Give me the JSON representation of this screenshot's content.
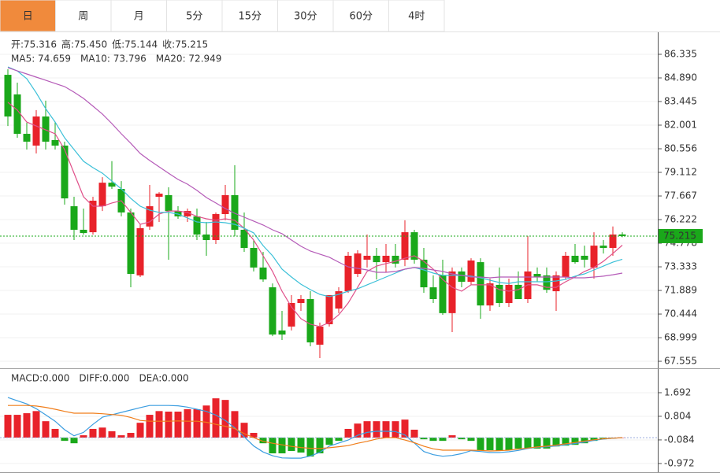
{
  "tabs": [
    "日",
    "周",
    "月",
    "5分",
    "15分",
    "30分",
    "60分",
    "4时"
  ],
  "active_tab": 0,
  "chart_data": {
    "type": "candlestick",
    "readouts": [
      {
        "label": "开:",
        "value": "75.316"
      },
      {
        "label": "高:",
        "value": "75.450"
      },
      {
        "label": "低:",
        "value": "75.144"
      },
      {
        "label": "收:",
        "value": "75.215"
      }
    ],
    "readout_color": "#1a9a1a",
    "up_color": "#e8222a",
    "down_color": "#1aa81a",
    "ylim": [
      67.22,
      87.635
    ],
    "yticks": [
      86.335,
      {
        "value": 84.89,
        "label": "84.890"
      },
      83.445,
      82.001,
      80.556,
      79.112,
      77.667,
      76.222,
      74.778,
      73.333,
      71.889,
      70.444,
      68.999,
      67.555
    ],
    "grid": true,
    "last_price": 75.215,
    "last_price_color": "#1aa81a",
    "open": [
      85.08,
      83.88,
      81.47,
      80.75,
      82.53,
      81.09,
      80.75,
      77.04,
      75.6,
      75.45,
      77.04,
      78.48,
      78.1,
      76.66,
      72.81,
      75.8,
      77.62,
      77.72,
      76.75,
      76.42,
      76.42,
      75.31,
      74.97,
      76.56,
      77.72,
      75.6,
      74.49,
      73.29,
      72.08,
      69.44,
      69.68,
      71.12,
      71.36,
      68.57,
      69.82,
      70.78,
      71.84,
      72.9,
      73.77,
      74.01,
      73.62,
      74.01,
      73.77,
      75.45,
      73.77,
      72.08,
      72.81,
      70.5,
      73.05,
      72.42,
      73.62,
      70.97,
      72.23,
      71.12,
      72.23,
      71.36,
      72.9,
      72.81,
      71.84,
      72.71,
      74.01,
      74.01,
      73.29,
      74.63,
      74.49,
      75.316
    ],
    "high": [
      85.42,
      84.6,
      82.15,
      82.92,
      83.5,
      82.2,
      80.99,
      77.62,
      76.9,
      77.62,
      78.82,
      79.8,
      78.58,
      76.9,
      75.94,
      78.34,
      77.9,
      78.2,
      77.04,
      76.9,
      76.9,
      76.08,
      76.66,
      78.34,
      79.55,
      76.66,
      74.97,
      74.25,
      72.32,
      70.64,
      71.6,
      71.6,
      71.84,
      69.92,
      71.6,
      72.08,
      74.25,
      74.35,
      75.31,
      74.49,
      74.73,
      74.73,
      76.18,
      75.6,
      74.49,
      72.81,
      73.77,
      73.29,
      73.29,
      73.86,
      73.86,
      72.61,
      73.29,
      72.61,
      73.05,
      75.21,
      73.29,
      73.29,
      73.05,
      74.25,
      74.73,
      74.63,
      75.45,
      74.97,
      75.8,
      75.45
    ],
    "low": [
      81.95,
      81.23,
      80.51,
      80.27,
      80.51,
      80.51,
      77.14,
      74.97,
      75.3,
      75.3,
      76.75,
      78.1,
      76.42,
      72.08,
      72.71,
      75.6,
      76.08,
      73.77,
      76.27,
      76.08,
      74.97,
      74.01,
      74.73,
      76.18,
      75.21,
      74.25,
      73.05,
      72.42,
      69.09,
      68.86,
      69.44,
      70.64,
      68.47,
      67.75,
      69.68,
      70.5,
      71.74,
      72.71,
      73.29,
      72.56,
      72.99,
      73.29,
      73.38,
      73.53,
      71.74,
      71.12,
      70.4,
      69.34,
      72.08,
      72.23,
      70.16,
      70.64,
      70.88,
      70.88,
      71.36,
      71.12,
      72.42,
      71.74,
      70.64,
      72.56,
      73.53,
      73.29,
      72.61,
      74.15,
      74.01,
      75.144
    ],
    "close": [
      82.53,
      81.47,
      80.99,
      82.53,
      80.99,
      80.75,
      77.52,
      75.6,
      75.4,
      77.38,
      78.48,
      78.24,
      76.66,
      72.9,
      75.7,
      77.04,
      77.81,
      76.75,
      76.42,
      76.75,
      75.31,
      74.97,
      76.56,
      77.72,
      75.6,
      74.49,
      73.29,
      72.56,
      69.19,
      69.19,
      71.12,
      71.36,
      68.71,
      69.68,
      71.6,
      71.84,
      74.01,
      74.15,
      74.01,
      73.62,
      74.01,
      73.53,
      75.45,
      73.77,
      72.08,
      71.36,
      70.5,
      73.05,
      72.42,
      73.72,
      70.97,
      72.32,
      71.12,
      72.23,
      71.36,
      73.05,
      72.71,
      71.93,
      72.81,
      74.01,
      73.62,
      73.77,
      74.63,
      74.49,
      75.31,
      75.215
    ],
    "series": [
      {
        "label": "MA5: 74.659",
        "color": "#e0508a",
        "values": [
          83.4,
          82.92,
          82.19,
          81.95,
          81.71,
          81.47,
          80.51,
          79.06,
          77.62,
          77.04,
          77.04,
          77.24,
          77.38,
          76.66,
          75.93,
          76.08,
          76.56,
          76.75,
          76.75,
          76.66,
          76.42,
          76.27,
          76.18,
          76.27,
          76.18,
          75.69,
          74.97,
          74.01,
          73.05,
          71.84,
          70.88,
          70.16,
          69.82,
          69.68,
          69.92,
          70.4,
          71.12,
          72.08,
          73.05,
          73.38,
          73.53,
          73.67,
          73.86,
          74.01,
          73.67,
          73.19,
          72.56,
          72.08,
          71.84,
          72.23,
          72.23,
          72.23,
          71.94,
          71.84,
          71.94,
          72.23,
          72.23,
          72.08,
          72.08,
          72.42,
          72.71,
          73.05,
          73.29,
          73.67,
          74.15,
          74.659
        ]
      },
      {
        "label": "MA10: 73.796",
        "color": "#3cc0d8",
        "values": [
          85.56,
          85.32,
          84.84,
          83.98,
          83.01,
          82.19,
          81.23,
          80.51,
          79.79,
          79.4,
          79.06,
          78.58,
          78.1,
          77.52,
          77.04,
          76.8,
          76.66,
          76.66,
          76.56,
          76.32,
          76.08,
          76.03,
          76.08,
          76.03,
          75.93,
          75.69,
          75.41,
          74.63,
          74.01,
          73.19,
          72.71,
          72.27,
          71.94,
          71.65,
          71.51,
          71.65,
          71.84,
          71.99,
          72.23,
          72.47,
          72.71,
          72.95,
          73.19,
          73.29,
          73.14,
          72.95,
          72.81,
          72.81,
          72.81,
          72.76,
          72.66,
          72.51,
          72.37,
          72.32,
          72.42,
          72.42,
          72.42,
          72.42,
          72.47,
          72.56,
          72.76,
          72.9,
          73.14,
          73.38,
          73.62,
          73.796
        ]
      },
      {
        "label": "MA20: 72.949",
        "color": "#b55bb8",
        "values": [
          85.52,
          85.32,
          85.13,
          84.94,
          84.75,
          84.55,
          84.36,
          84.02,
          83.64,
          83.16,
          82.68,
          82.1,
          81.47,
          80.89,
          80.27,
          79.84,
          79.45,
          79.06,
          78.68,
          78.39,
          78.01,
          77.57,
          77.24,
          76.9,
          76.61,
          76.37,
          76.13,
          75.89,
          75.6,
          75.36,
          74.97,
          74.59,
          74.3,
          74.11,
          73.92,
          73.62,
          73.33,
          73.24,
          73.14,
          73.0,
          73.0,
          73.05,
          73.19,
          73.29,
          73.24,
          73.14,
          73.05,
          72.9,
          72.81,
          72.71,
          72.71,
          72.66,
          72.71,
          72.71,
          72.71,
          72.71,
          72.71,
          72.71,
          72.71,
          72.71,
          72.66,
          72.66,
          72.71,
          72.76,
          72.85,
          72.949
        ]
      }
    ],
    "macd": {
      "ylim": [
        -1.3,
        2.55
      ],
      "yticks": [
        1.692,
        0.804,
        -0.084,
        -0.972
      ],
      "bars": {
        "label": "MACD:0.000",
        "color": "#e8222a",
        "values": [
          0.86,
          0.86,
          0.92,
          1.0,
          0.62,
          0.33,
          -0.12,
          -0.21,
          0.09,
          0.33,
          0.38,
          0.24,
          0.09,
          0.18,
          0.56,
          0.86,
          1.0,
          0.98,
          0.98,
          1.07,
          1.07,
          1.21,
          1.48,
          1.42,
          1.0,
          0.56,
          0.18,
          -0.21,
          -0.59,
          -0.59,
          -0.5,
          -0.56,
          -0.71,
          -0.59,
          -0.27,
          -0.12,
          0.33,
          0.53,
          0.62,
          0.62,
          0.62,
          0.62,
          0.68,
          0.3,
          -0.06,
          -0.12,
          -0.12,
          0.09,
          -0.06,
          -0.12,
          -0.47,
          -0.47,
          -0.5,
          -0.47,
          -0.41,
          -0.41,
          -0.41,
          -0.41,
          -0.33,
          -0.3,
          -0.27,
          -0.21,
          -0.12,
          -0.06,
          -0.03,
          0
        ]
      },
      "diff": {
        "label": "DIFF:0.000",
        "color": "#3b9de0",
        "values": [
          1.51,
          1.39,
          1.27,
          1.09,
          0.86,
          0.62,
          0.3,
          0.07,
          0.2,
          0.5,
          0.77,
          0.86,
          0.95,
          1.04,
          1.13,
          1.21,
          1.21,
          1.21,
          1.2,
          1.15,
          1.07,
          0.99,
          0.85,
          0.65,
          0.37,
          0.03,
          -0.31,
          -0.54,
          -0.68,
          -0.76,
          -0.77,
          -0.77,
          -0.69,
          -0.55,
          -0.32,
          -0.2,
          -0.09,
          0.09,
          0.2,
          0.24,
          0.24,
          0.23,
          0.1,
          -0.2,
          -0.52,
          -0.64,
          -0.7,
          -0.67,
          -0.6,
          -0.49,
          -0.52,
          -0.56,
          -0.56,
          -0.53,
          -0.48,
          -0.41,
          -0.36,
          -0.34,
          -0.31,
          -0.27,
          -0.22,
          -0.17,
          -0.1,
          -0.05,
          -0.02,
          0
        ]
      },
      "dea": {
        "label": "DEA:0.000",
        "color": "#f07d1a",
        "values": [
          1.21,
          1.21,
          1.21,
          1.19,
          1.14,
          1.07,
          0.99,
          0.92,
          0.92,
          0.92,
          0.9,
          0.87,
          0.84,
          0.76,
          0.65,
          0.62,
          0.62,
          0.62,
          0.63,
          0.62,
          0.62,
          0.58,
          0.5,
          0.43,
          0.34,
          0.15,
          0,
          -0.14,
          -0.21,
          -0.27,
          -0.33,
          -0.37,
          -0.4,
          -0.41,
          -0.38,
          -0.34,
          -0.3,
          -0.21,
          -0.14,
          -0.05,
          0,
          0,
          -0.09,
          -0.19,
          -0.32,
          -0.42,
          -0.47,
          -0.47,
          -0.47,
          -0.47,
          -0.48,
          -0.5,
          -0.49,
          -0.47,
          -0.43,
          -0.39,
          -0.35,
          -0.32,
          -0.28,
          -0.23,
          -0.18,
          -0.13,
          -0.08,
          -0.04,
          -0.02,
          0
        ]
      }
    }
  }
}
